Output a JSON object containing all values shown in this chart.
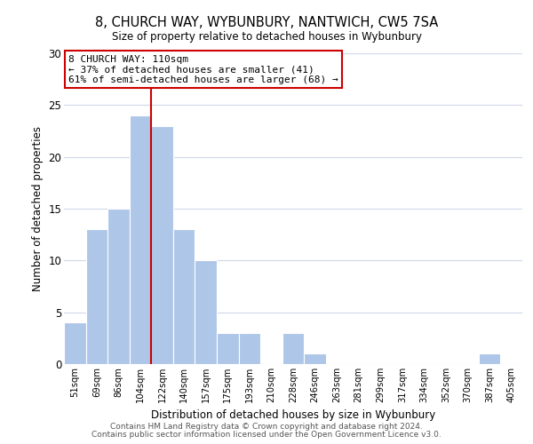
{
  "title": "8, CHURCH WAY, WYBUNBURY, NANTWICH, CW5 7SA",
  "subtitle": "Size of property relative to detached houses in Wybunbury",
  "bar_labels": [
    "51sqm",
    "69sqm",
    "86sqm",
    "104sqm",
    "122sqm",
    "140sqm",
    "157sqm",
    "175sqm",
    "193sqm",
    "210sqm",
    "228sqm",
    "246sqm",
    "263sqm",
    "281sqm",
    "299sqm",
    "317sqm",
    "334sqm",
    "352sqm",
    "370sqm",
    "387sqm",
    "405sqm"
  ],
  "bar_heights": [
    4,
    13,
    15,
    24,
    23,
    13,
    10,
    3,
    3,
    0,
    3,
    1,
    0,
    0,
    0,
    0,
    0,
    0,
    0,
    1,
    0
  ],
  "bar_color": "#aec6e8",
  "bar_edge_color": "#ffffff",
  "property_vline_index": 4.0,
  "xlabel": "Distribution of detached houses by size in Wybunbury",
  "ylabel": "Number of detached properties",
  "ylim": [
    0,
    30
  ],
  "yticks": [
    0,
    5,
    10,
    15,
    20,
    25,
    30
  ],
  "annotation_title": "8 CHURCH WAY: 110sqm",
  "annotation_line1": "← 37% of detached houses are smaller (41)",
  "annotation_line2": "61% of semi-detached houses are larger (68) →",
  "annotation_box_color": "#ffffff",
  "annotation_box_edge": "#cc0000",
  "property_vline_color": "#cc0000",
  "footer_line1": "Contains HM Land Registry data © Crown copyright and database right 2024.",
  "footer_line2": "Contains public sector information licensed under the Open Government Licence v3.0.",
  "background_color": "#ffffff",
  "grid_color": "#d0d8e8"
}
